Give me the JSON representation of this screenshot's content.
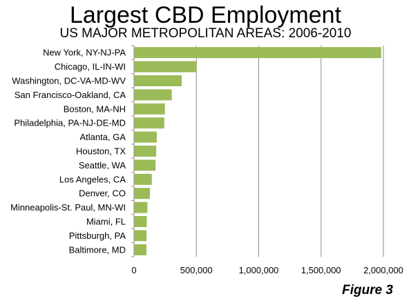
{
  "title": "Largest CBD Employment",
  "subtitle": "US MAJOR METROPOLITAN AREAS: 2006-2010",
  "figure_label": "Figure 3",
  "colors": {
    "bar": "#9bbb59",
    "grid": "#8c8c8c"
  },
  "chart_data": {
    "type": "bar",
    "orientation": "horizontal",
    "title": "Largest CBD Employment",
    "subtitle": "US MAJOR METROPOLITAN AREAS: 2006-2010",
    "categories": [
      "New York, NY-NJ-PA",
      "Chicago, IL-IN-WI",
      "Washington, DC-VA-MD-WV",
      "San Francisco-Oakland, CA",
      "Boston, MA-NH",
      "Philadelphia, PA-NJ-DE-MD",
      "Atlanta, GA",
      "Houston, TX",
      "Seattle, WA",
      "Los Angeles, CA",
      "Denver, CO",
      "Minneapolis-St. Paul, MN-WI",
      "Miami, FL",
      "Pittsburgh, PA",
      "Baltimore, MD"
    ],
    "values": [
      1980000,
      500000,
      380000,
      300000,
      245000,
      240000,
      180000,
      175000,
      170000,
      140000,
      125000,
      105000,
      100000,
      98000,
      97000
    ],
    "xlim": [
      0,
      2000000
    ],
    "xticks": [
      0,
      500000,
      1000000,
      1500000,
      2000000
    ],
    "xtick_labels": [
      "0",
      "500,000",
      "1,000,000",
      "1,500,000",
      "2,000,000"
    ],
    "xlabel": "",
    "ylabel": "",
    "grid": "vertical",
    "legend": "none"
  }
}
